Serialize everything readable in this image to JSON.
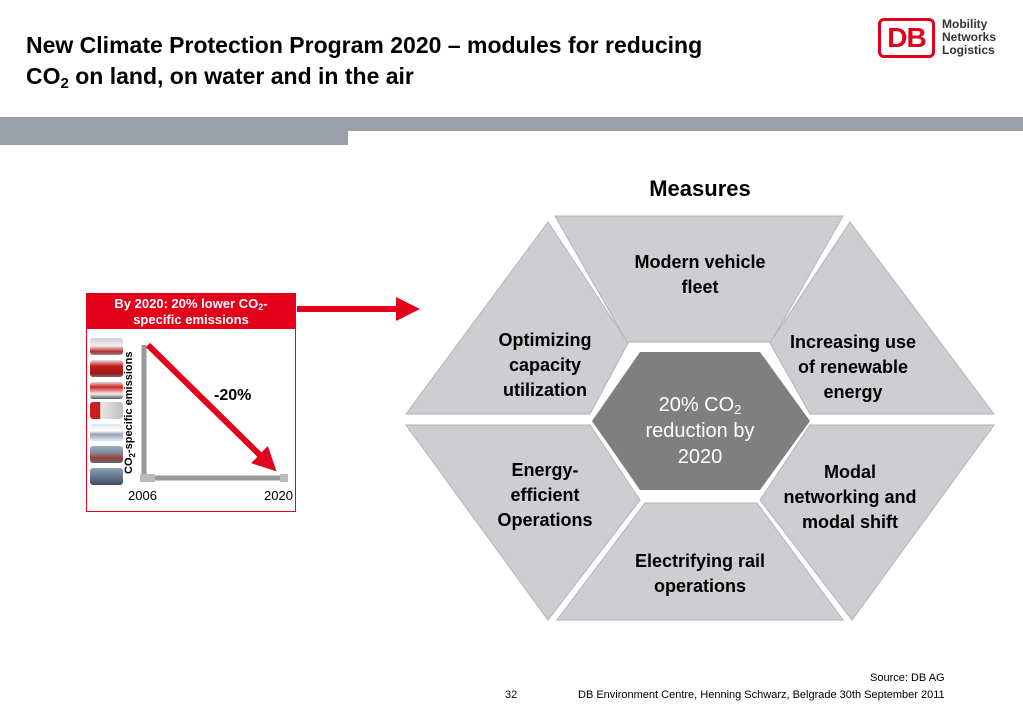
{
  "slide": {
    "title_line1": "New Climate Protection Program 2020 – modules for reducing",
    "title_line2_pre": "CO",
    "title_line2_sub": "2",
    "title_line2_post": " on land, on water and in the air"
  },
  "logo": {
    "mark": "DB",
    "line1": "Mobility",
    "line2": "Networks",
    "line3": "Logistics",
    "brand_color": "#e2001a"
  },
  "measures_heading": "Measures",
  "left_panel": {
    "header_pre": "By 2020: 20% lower CO",
    "header_sub": "2",
    "header_post": "-",
    "header_line2": "specific emissions",
    "axis_pre": "CO",
    "axis_sub": "2",
    "axis_post": "-specific emissions",
    "reduction": "-20%",
    "year_start": "2006",
    "year_end": "2020",
    "mode_icons": [
      "ice-train-icon",
      "regional-train-icon",
      "bus-icon",
      "truck-icon",
      "airplane-icon",
      "ship-icon",
      "freight-icon"
    ]
  },
  "hexagon": {
    "center_pre": "20% CO",
    "center_sub": "2",
    "center_line2": "reduction by",
    "center_line3": "2020",
    "modules": {
      "top": [
        "Modern vehicle",
        "fleet"
      ],
      "upper_left": [
        "Optimizing",
        "capacity",
        "utilization"
      ],
      "upper_right": [
        "Increasing use",
        "of renewable",
        "energy"
      ],
      "lower_left": [
        "Energy-",
        "efficient",
        "Operations"
      ],
      "lower_right": [
        "Modal",
        "networking and",
        "modal shift"
      ],
      "bottom": [
        "Electrifying rail",
        "operations"
      ]
    },
    "segment_color": "#cdcdd2",
    "center_color": "#7f7f7f"
  },
  "footer": {
    "source": "Source: DB AG",
    "page": "32",
    "text": "DB Environment Centre, Henning Schwarz, Belgrade 30th September 2011"
  }
}
